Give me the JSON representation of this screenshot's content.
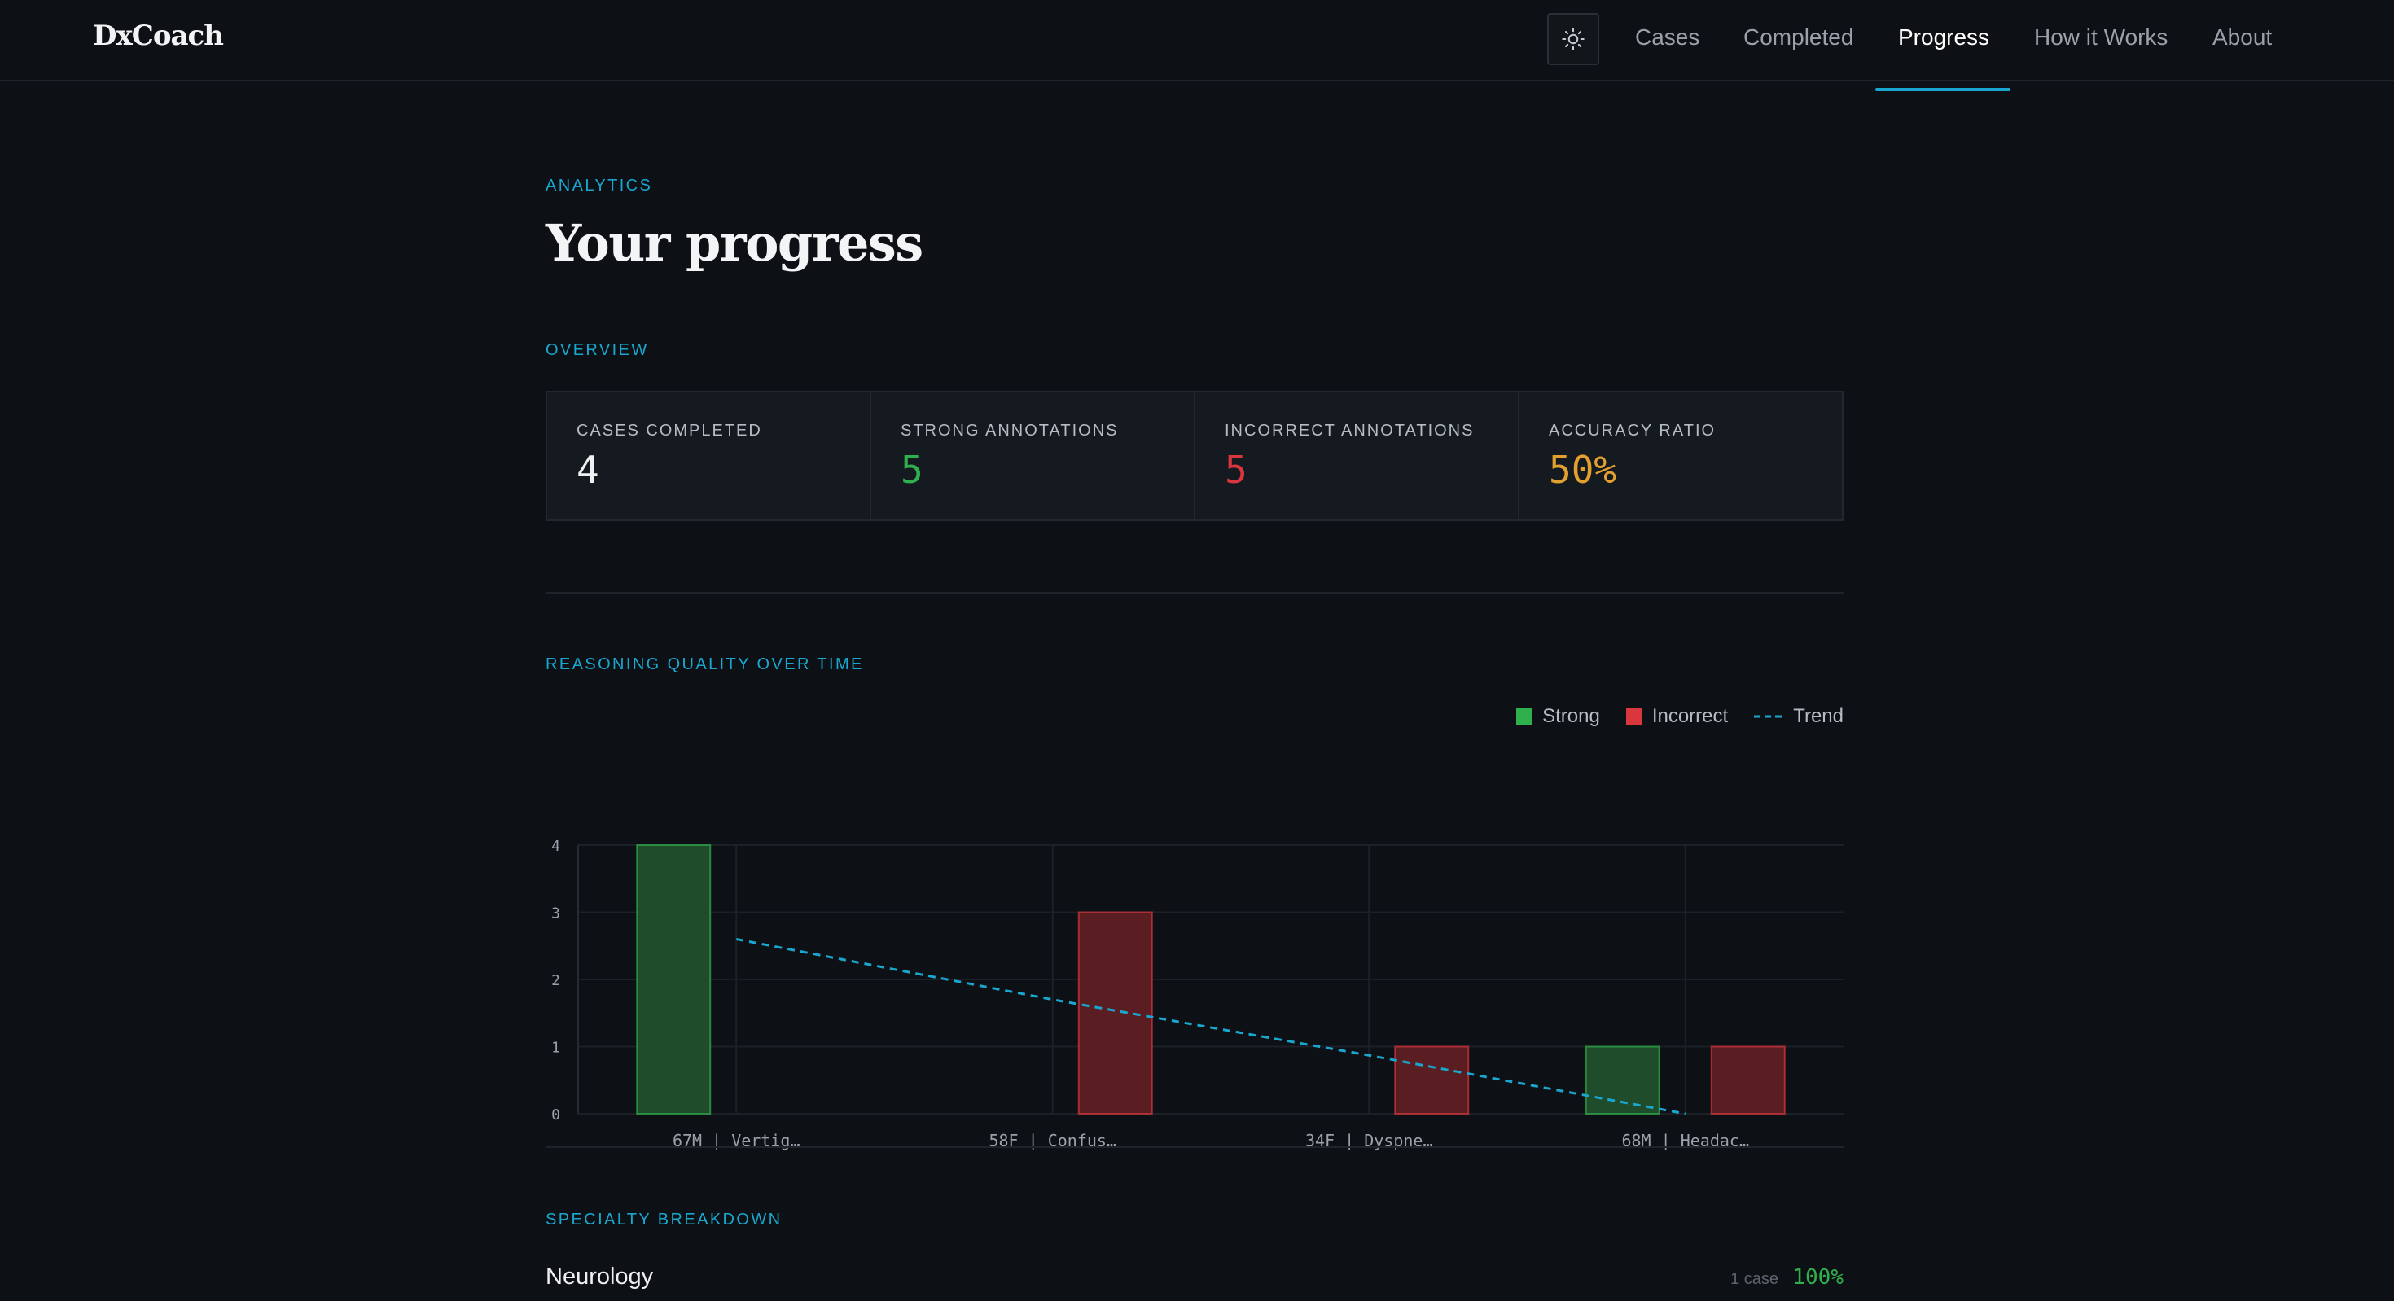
{
  "brand": "DxCoach",
  "nav": {
    "links": [
      "Cases",
      "Completed",
      "Progress",
      "How it Works",
      "About"
    ],
    "active": "Progress"
  },
  "page": {
    "eyebrow": "ANALYTICS",
    "title": "Your progress"
  },
  "overview": {
    "heading": "OVERVIEW",
    "stats": [
      {
        "label": "CASES COMPLETED",
        "value": "4",
        "color": "#eef0f2"
      },
      {
        "label": "STRONG ANNOTATIONS",
        "value": "5",
        "color": "#2fb04c"
      },
      {
        "label": "INCORRECT ANNOTATIONS",
        "value": "5",
        "color": "#d9363e"
      },
      {
        "label": "ACCURACY RATIO",
        "value": "50%",
        "color": "#e2a12f"
      }
    ]
  },
  "reasoning": {
    "heading": "REASONING QUALITY OVER TIME",
    "legend": {
      "strong": "Strong",
      "incorrect": "Incorrect",
      "trend": "Trend"
    }
  },
  "chart_data": {
    "type": "bar",
    "categories": [
      "67M | Vertig…",
      "58F | Confus…",
      "34F | Dyspne…",
      "68M | Headac…"
    ],
    "series": [
      {
        "name": "Strong",
        "values": [
          4,
          0,
          0,
          1
        ],
        "color": "#2fb04c"
      },
      {
        "name": "Incorrect",
        "values": [
          0,
          3,
          1,
          1
        ],
        "color": "#d9363e"
      }
    ],
    "trend": {
      "name": "Trend",
      "values": [
        2.6,
        1.7,
        0.87,
        0.0
      ],
      "color": "#19a7cf"
    },
    "yticks": [
      0,
      1,
      2,
      3,
      4
    ],
    "ylim": [
      0,
      4
    ],
    "grid": true,
    "legend_position": "top-right"
  },
  "specialty": {
    "heading": "SPECIALTY BREAKDOWN",
    "rows": [
      {
        "name": "Neurology",
        "count": "1 case",
        "pct": "100%"
      }
    ]
  },
  "colors": {
    "accent": "#19a7cf",
    "strong": "#2fb04c",
    "incorrect": "#d9363e",
    "warning": "#e2a12f"
  }
}
